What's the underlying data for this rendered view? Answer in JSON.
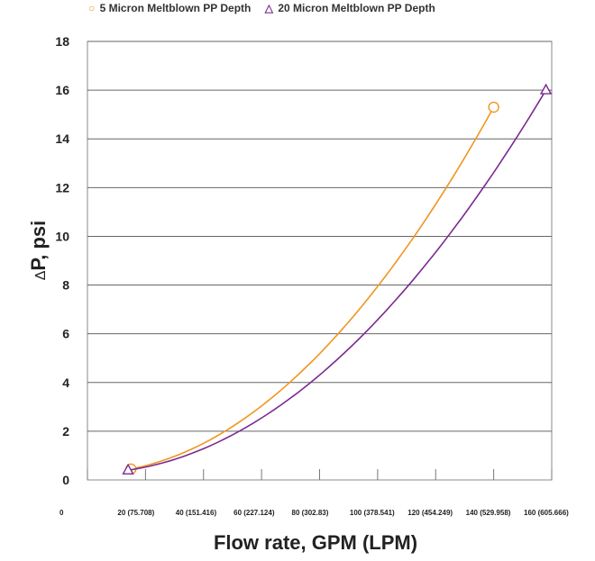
{
  "chart_data": {
    "type": "line",
    "legend_position": "top",
    "grid": true,
    "ylabel_delta": "Δ",
    "ylabel_text": "P, psi",
    "xlabel": "Flow rate, GPM (LPM)",
    "xlim": [
      0,
      160
    ],
    "ylim": [
      0,
      18
    ],
    "y_ticks": [
      0,
      2,
      4,
      6,
      8,
      10,
      12,
      14,
      16,
      18
    ],
    "x_ticks": [
      0,
      20,
      40,
      60,
      80,
      100,
      120,
      140,
      160
    ],
    "x_tick_labels": [
      "0",
      "20 (75.708)",
      "40 (151.416)",
      "60 (227.124)",
      "80 (302.83)",
      "100 (378.541)",
      "120 (454.249)",
      "140 (529.958)",
      "160 (605.666)"
    ],
    "series": [
      {
        "name": "5 Micron Meltblown PP Depth",
        "color": "#f0961e",
        "marker": "circle",
        "marker_symbol": "○",
        "x": [
          15,
          140
        ],
        "y": [
          0.45,
          15.3
        ]
      },
      {
        "name": "20 Micron Meltblown PP Depth",
        "color": "#7b2a90",
        "marker": "triangle",
        "marker_symbol": "△",
        "x": [
          14,
          158
        ],
        "y": [
          0.4,
          16
        ]
      }
    ]
  }
}
